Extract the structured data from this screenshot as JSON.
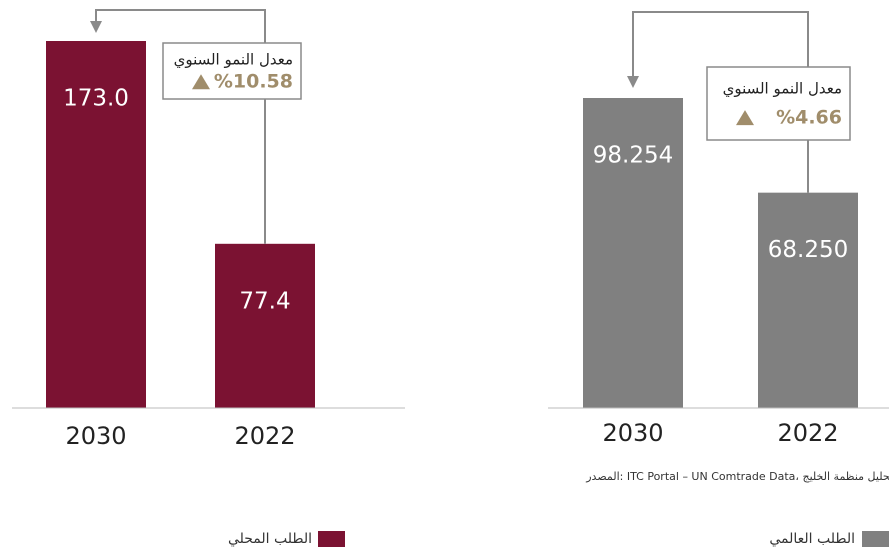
{
  "chart_data": [
    {
      "type": "bar",
      "legend": "الطلب المحلي",
      "color": "#7b1232",
      "categories": [
        "2030",
        "2022"
      ],
      "values": [
        173.0,
        77.4
      ],
      "value_labels": [
        "173.0",
        "77.4"
      ],
      "annotation": {
        "text": "معدل النمو السنوي",
        "value": 10.58,
        "label": "%10.58"
      }
    },
    {
      "type": "bar",
      "legend": "الطلب العالمي",
      "color": "#808080",
      "categories": [
        "2030",
        "2022"
      ],
      "values": [
        98.254,
        68.25
      ],
      "value_labels": [
        "98.254",
        "68.250"
      ],
      "annotation": {
        "text": "معدل النمو السنوي",
        "value": 4.66,
        "label": "%4.66"
      },
      "source": "المصدر: ITC Portal – UN Comtrade Data، تحليل منظمة الخليج"
    }
  ]
}
